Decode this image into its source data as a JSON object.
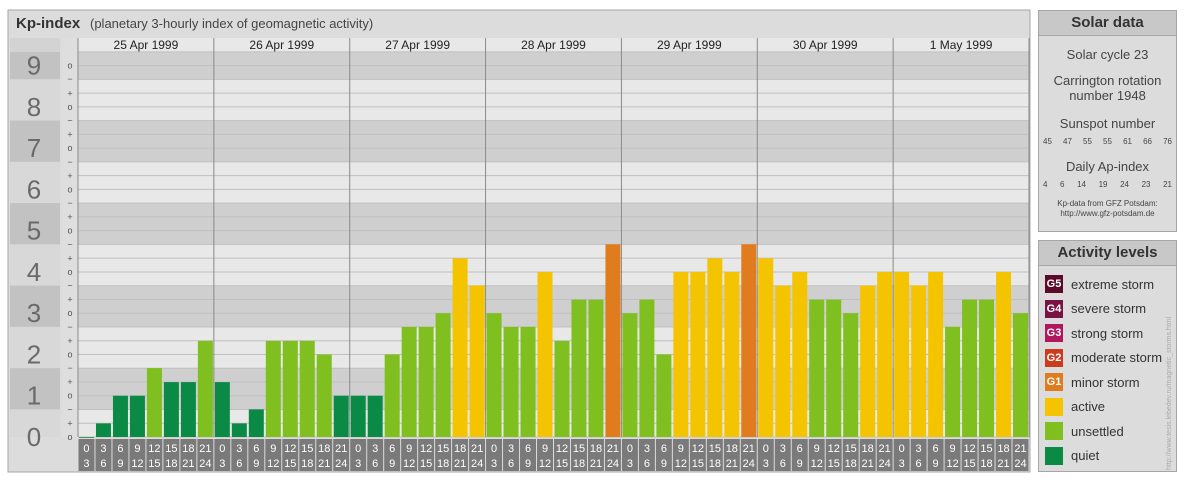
{
  "header": {
    "title": "Kp-index",
    "subtitle": "(planetary 3-hourly index of geomagnetic activity)"
  },
  "solar": {
    "title": "Solar data",
    "cycle_text": "Solar cycle 23",
    "carrington_text_1": "Carrington rotation",
    "carrington_text_2": "number 1948",
    "sunspot_title": "Sunspot number",
    "sunspot_numbers": [
      "45",
      "47",
      "55",
      "55",
      "61",
      "66",
      "76"
    ],
    "ap_title": "Daily Ap-index",
    "ap_numbers": [
      "4",
      "6",
      "14",
      "19",
      "24",
      "23",
      "21"
    ],
    "source_line1": "Kp-data from GFZ Potsdam:",
    "source_line2": "http://www.gfz-potsdam.de"
  },
  "legend": {
    "title": "Activity levels",
    "items": [
      {
        "badge": "G5",
        "label": "extreme storm",
        "color": "#5c0a2a"
      },
      {
        "badge": "G4",
        "label": "severe storm",
        "color": "#7b1244"
      },
      {
        "badge": "G3",
        "label": "strong storm",
        "color": "#b0175c"
      },
      {
        "badge": "G2",
        "label": "moderate storm",
        "color": "#cc3b1e"
      },
      {
        "badge": "G1",
        "label": "minor storm",
        "color": "#e07b1e"
      },
      {
        "badge": "",
        "label": "active",
        "color": "#f5c400"
      },
      {
        "badge": "",
        "label": "unsettled",
        "color": "#7fbf1f"
      },
      {
        "badge": "",
        "label": "quiet",
        "color": "#0a8a45"
      }
    ]
  },
  "credit": "http://www.tesis.lebedev.ru/magnetic_storms.html",
  "chart_data": {
    "type": "bar",
    "title": "Kp-index",
    "subtitle": "(planetary 3-hourly index of geomagnetic activity)",
    "days": [
      "25 Apr 1999",
      "26 Apr 1999",
      "27 Apr 1999",
      "28 Apr 1999",
      "29 Apr 1999",
      "30 Apr 1999",
      "1 May 1999"
    ],
    "interval_start_labels": [
      "0",
      "3",
      "6",
      "9",
      "12",
      "15",
      "18",
      "21"
    ],
    "interval_end_labels": [
      "3",
      "6",
      "9",
      "12",
      "15",
      "18",
      "21",
      "24"
    ],
    "y_major_labels": [
      "0",
      "1",
      "2",
      "3",
      "4",
      "5",
      "6",
      "7",
      "8",
      "9"
    ],
    "y_minor_labels": [
      "+",
      "o",
      "−"
    ],
    "ylim": [
      0,
      9.33
    ],
    "values": [
      [
        0.0,
        0.33,
        1.0,
        1.0,
        1.67,
        1.33,
        1.33,
        2.33
      ],
      [
        1.33,
        0.33,
        0.67,
        2.33,
        2.33,
        2.33,
        2.0,
        1.0
      ],
      [
        1.0,
        1.0,
        2.0,
        2.67,
        2.67,
        3.0,
        4.33,
        3.67
      ],
      [
        3.0,
        2.67,
        2.67,
        4.0,
        2.33,
        3.33,
        3.33,
        4.67
      ],
      [
        3.0,
        3.33,
        2.0,
        4.0,
        4.0,
        4.33,
        4.0,
        4.67
      ],
      [
        4.33,
        3.67,
        4.0,
        3.33,
        3.33,
        3.0,
        3.67,
        4.0
      ],
      [
        4.0,
        3.67,
        4.0,
        2.67,
        3.33,
        3.33,
        4.0,
        3.0
      ]
    ],
    "colors": {
      "quiet": "#0a8a45",
      "unsettled": "#7fbf1f",
      "active": "#f5c400",
      "minor_storm": "#e07b1e"
    }
  }
}
